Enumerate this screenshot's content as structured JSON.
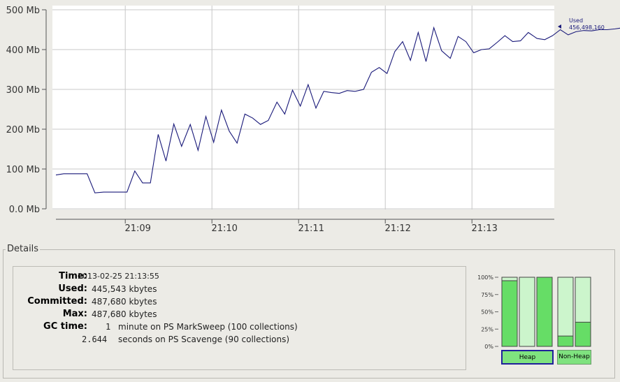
{
  "chart": {
    "y_ticks": [
      "500 Mb",
      "400 Mb",
      "300 Mb",
      "200 Mb",
      "100 Mb",
      "0.0 Mb"
    ],
    "x_ticks": [
      "21:09",
      "21:10",
      "21:11",
      "21:12",
      "21:13"
    ],
    "legend_label": "Used",
    "legend_value": "456,498,160",
    "line_color": "#1a1a7a"
  },
  "chart_data": {
    "type": "line",
    "x_ticks": [
      "21:09",
      "21:10",
      "21:11",
      "21:12",
      "21:13"
    ],
    "ylim": [
      0,
      500
    ],
    "y_unit": "Mb",
    "grid": true,
    "series": [
      {
        "name": "Used",
        "x_minutes": [
          0,
          0.09,
          0.18,
          0.27,
          0.36,
          0.45,
          0.55,
          0.64,
          0.73,
          0.82,
          0.91,
          1.0,
          1.09,
          1.18,
          1.27,
          1.36,
          1.45,
          1.55,
          1.64,
          1.73,
          1.82,
          1.91,
          2.0,
          2.09,
          2.18,
          2.27,
          2.36,
          2.45,
          2.55,
          2.64,
          2.73,
          2.82,
          2.91,
          3.0,
          3.09,
          3.18,
          3.27,
          3.36,
          3.45,
          3.55,
          3.64,
          3.73,
          3.82,
          3.91,
          4.0,
          4.09,
          4.18,
          4.27,
          4.36,
          4.45,
          4.55,
          4.64,
          4.73,
          4.82,
          4.91,
          5.0,
          5.09,
          5.18,
          5.27,
          5.36,
          5.45,
          5.55,
          5.64,
          5.73,
          5.82,
          5.91,
          6.0,
          6.09,
          6.18,
          6.27,
          6.36,
          6.45,
          6.55,
          6.64,
          6.73,
          6.82,
          6.91,
          7.0,
          7.09,
          7.18,
          7.27,
          7.36,
          7.45,
          7.55,
          7.64,
          7.73,
          7.82,
          7.91,
          8.0,
          8.09,
          8.18,
          8.27,
          8.36,
          8.45,
          8.55,
          8.64,
          8.73
        ],
        "values": [
          85,
          88,
          88,
          88,
          88,
          40,
          42,
          42,
          42,
          42,
          95,
          65,
          65,
          187,
          120,
          213,
          157,
          212,
          147,
          232,
          167,
          248,
          195,
          165,
          238,
          228,
          212,
          222,
          268,
          238,
          298,
          258,
          312,
          253,
          295,
          292,
          290,
          297,
          295,
          300,
          343,
          355,
          340,
          395,
          420,
          373,
          443,
          370,
          455,
          397,
          378,
          433,
          420,
          392,
          400,
          402,
          418,
          435,
          420,
          422,
          443,
          428,
          425,
          435,
          450,
          437,
          445,
          448,
          447,
          450,
          450,
          452,
          455,
          452,
          455,
          456,
          456,
          457,
          456,
          455,
          458,
          459,
          460,
          456,
          458,
          460,
          458,
          456,
          456,
          456,
          456,
          456,
          456,
          456,
          456,
          456,
          457
        ]
      }
    ]
  },
  "details": {
    "title": "Details",
    "time_label": "Time:",
    "time_value": "2013-02-25 21:13:55",
    "used_label": "Used:",
    "used_value": "445,543 kbytes",
    "committed_label": "Committed:",
    "committed_value": "487,680 kbytes",
    "max_label": "Max:",
    "max_value": "487,680 kbytes",
    "gc_label": "GC time:",
    "gc_line1_amount": "1",
    "gc_line1_rest": "minute on PS MarkSweep (100 collections)",
    "gc_line2_amount": "2.644",
    "gc_line2_rest": "seconds on PS Scavenge (90 collections)"
  },
  "bars": {
    "scale_ticks": [
      "100%",
      "75%",
      "50%",
      "25%",
      "0%"
    ],
    "heap": [
      {
        "fill": 0.95,
        "cap": 1.0
      },
      {
        "fill": 0.0,
        "cap": 1.0
      },
      {
        "fill": 1.0,
        "cap": 1.0
      }
    ],
    "non_heap": [
      {
        "fill": 0.15,
        "cap": 1.0
      },
      {
        "fill": 0.35,
        "cap": 1.0
      }
    ],
    "heap_button": "Heap",
    "non_heap_button": "Non-Heap"
  }
}
